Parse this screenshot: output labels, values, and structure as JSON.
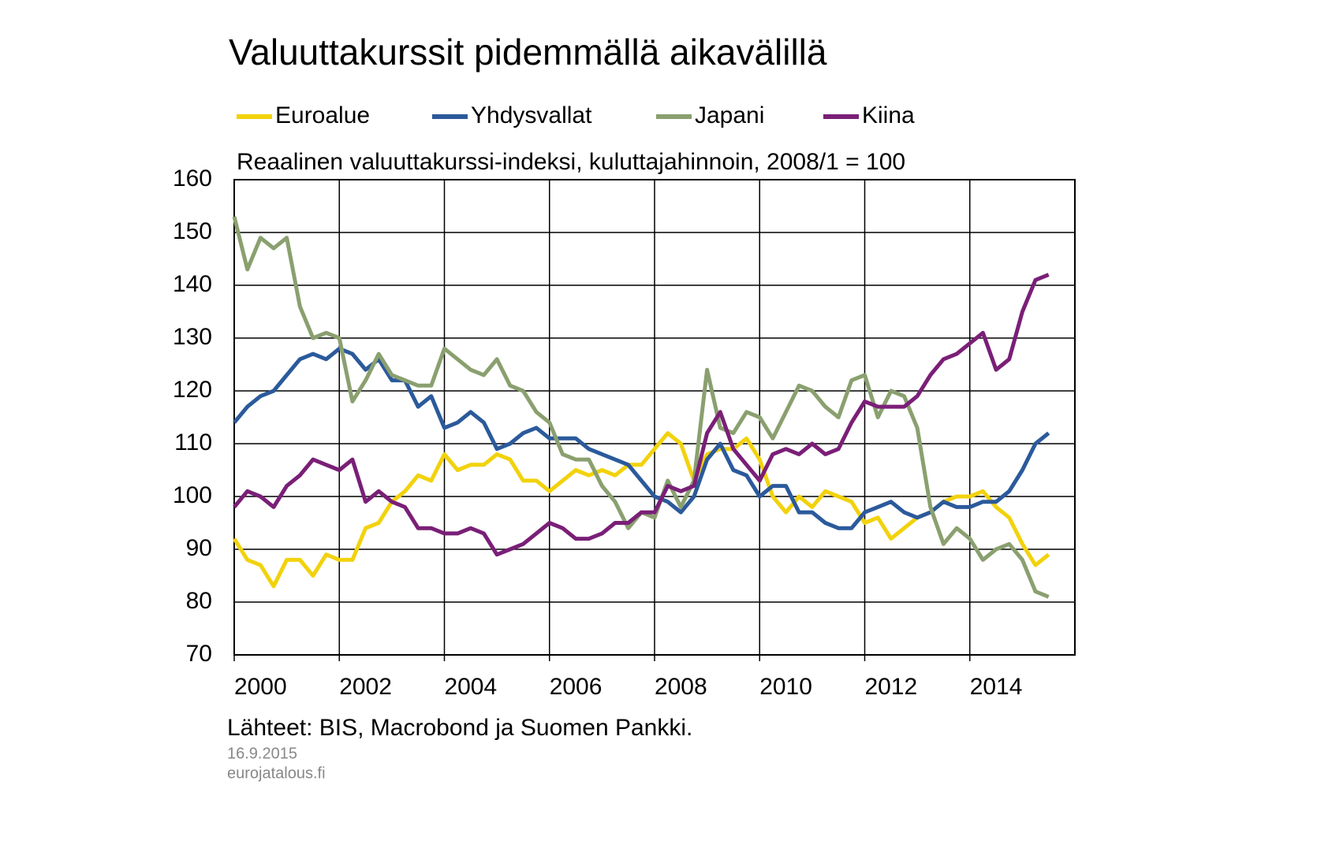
{
  "chart_data": {
    "type": "line",
    "title": "Valuuttakurssit pidemmällä aikavälillä",
    "subtitle": "Reaalinen valuuttakurssi-indeksi, kuluttajahinnoin, 2008/1 = 100",
    "source": "Lähteet: BIS, Macrobond ja Suomen Pankki.",
    "date": "16.9.2015",
    "site": "eurojatalous.fi",
    "grid": true,
    "xlim": [
      2000,
      2016
    ],
    "xticks": [
      2000,
      2002,
      2004,
      2006,
      2008,
      2010,
      2012,
      2014
    ],
    "ylim": [
      70,
      160
    ],
    "yticks": [
      70,
      80,
      90,
      100,
      110,
      120,
      130,
      140,
      150,
      160
    ],
    "x": [
      2000,
      2000.25,
      2000.5,
      2000.75,
      2001,
      2001.25,
      2001.5,
      2001.75,
      2002,
      2002.25,
      2002.5,
      2002.75,
      2003,
      2003.25,
      2003.5,
      2003.75,
      2004,
      2004.25,
      2004.5,
      2004.75,
      2005,
      2005.25,
      2005.5,
      2005.75,
      2006,
      2006.25,
      2006.5,
      2006.75,
      2007,
      2007.25,
      2007.5,
      2007.75,
      2008,
      2008.25,
      2008.5,
      2008.75,
      2009,
      2009.25,
      2009.5,
      2009.75,
      2010,
      2010.25,
      2010.5,
      2010.75,
      2011,
      2011.25,
      2011.5,
      2011.75,
      2012,
      2012.25,
      2012.5,
      2012.75,
      2013,
      2013.25,
      2013.5,
      2013.75,
      2014,
      2014.25,
      2014.5,
      2014.75,
      2015,
      2015.25,
      2015.5
    ],
    "series": [
      {
        "name": "Euroalue",
        "color": "#f2d20c",
        "values": [
          92,
          88,
          87,
          83,
          88,
          88,
          85,
          89,
          88,
          88,
          94,
          95,
          99,
          101,
          104,
          103,
          108,
          105,
          106,
          106,
          108,
          107,
          103,
          103,
          101,
          103,
          105,
          104,
          105,
          104,
          106,
          106,
          109,
          112,
          110,
          103,
          108,
          109,
          109,
          111,
          107,
          100,
          97,
          100,
          98,
          101,
          100,
          99,
          95,
          96,
          92,
          94,
          96,
          97,
          99,
          100,
          100,
          101,
          98,
          96,
          91,
          87,
          89
        ]
      },
      {
        "name": "Yhdysvallat",
        "color": "#2b5a9b",
        "values": [
          114,
          117,
          119,
          120,
          123,
          126,
          127,
          126,
          128,
          127,
          124,
          126,
          122,
          122,
          117,
          119,
          113,
          114,
          116,
          114,
          109,
          110,
          112,
          113,
          111,
          111,
          111,
          109,
          108,
          107,
          106,
          103,
          100,
          99,
          97,
          100,
          107,
          110,
          105,
          104,
          100,
          102,
          102,
          97,
          97,
          95,
          94,
          94,
          97,
          98,
          99,
          97,
          96,
          97,
          99,
          98,
          98,
          99,
          99,
          101,
          105,
          110,
          112
        ]
      },
      {
        "name": "Japani",
        "color": "#8aa06f",
        "values": [
          153,
          143,
          149,
          147,
          149,
          136,
          130,
          131,
          130,
          118,
          122,
          127,
          123,
          122,
          121,
          121,
          128,
          126,
          124,
          123,
          126,
          121,
          120,
          116,
          114,
          108,
          107,
          107,
          102,
          99,
          94,
          97,
          96,
          103,
          98,
          103,
          124,
          113,
          112,
          116,
          115,
          111,
          116,
          121,
          120,
          117,
          115,
          122,
          123,
          115,
          120,
          119,
          113,
          98,
          91,
          94,
          92,
          88,
          90,
          91,
          88,
          82,
          81
        ]
      },
      {
        "name": "Kiina",
        "color": "#7a1f77",
        "values": [
          98,
          101,
          100,
          98,
          102,
          104,
          107,
          106,
          105,
          107,
          99,
          101,
          99,
          98,
          94,
          94,
          93,
          93,
          94,
          93,
          89,
          90,
          91,
          93,
          95,
          94,
          92,
          92,
          93,
          95,
          95,
          97,
          97,
          102,
          101,
          102,
          112,
          116,
          109,
          106,
          103,
          108,
          109,
          108,
          110,
          108,
          109,
          114,
          118,
          117,
          117,
          117,
          119,
          123,
          126,
          127,
          129,
          131,
          124,
          126,
          135,
          141,
          142
        ]
      }
    ]
  }
}
